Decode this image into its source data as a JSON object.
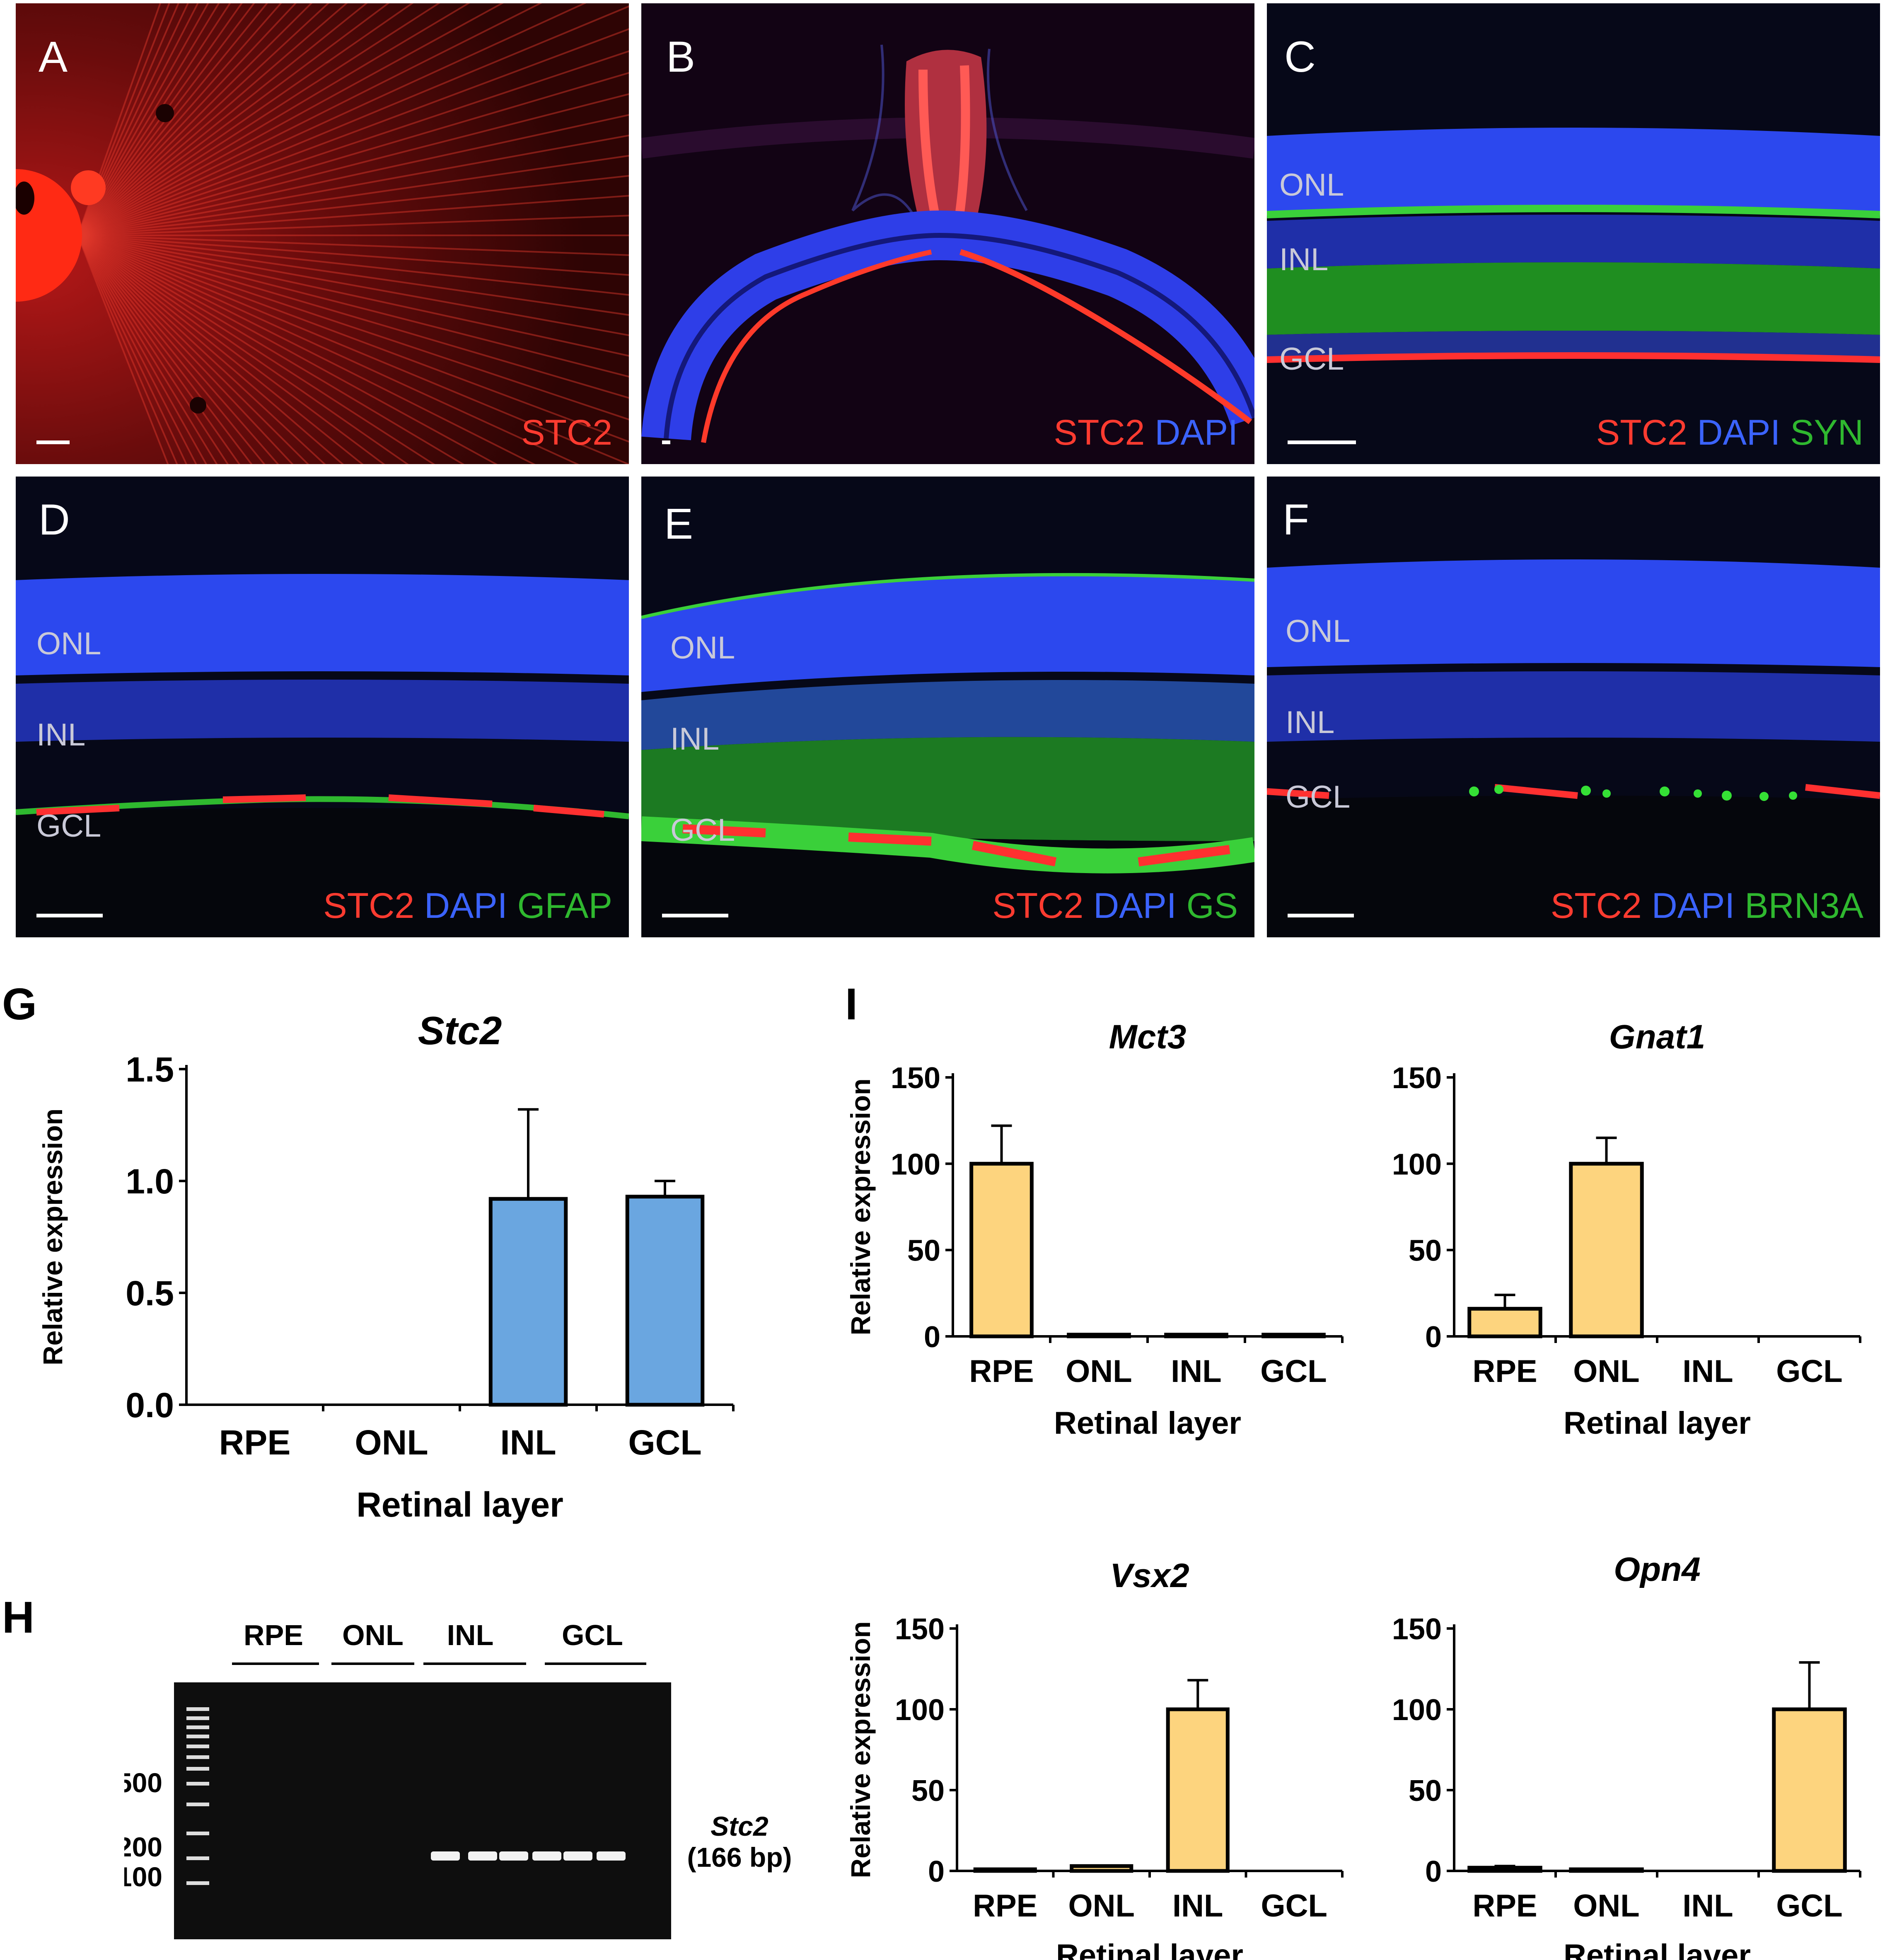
{
  "panels": {
    "A": {
      "letter": "A",
      "stains": [
        {
          "text": "STC2",
          "color": "#ff3b30"
        }
      ],
      "layers": []
    },
    "B": {
      "letter": "B",
      "stains": [
        {
          "text": "STC2",
          "color": "#ff3b30"
        },
        {
          "text": "DAPI",
          "color": "#3b63ff"
        }
      ],
      "layers": []
    },
    "C": {
      "letter": "C",
      "stains": [
        {
          "text": "STC2",
          "color": "#ff3b30"
        },
        {
          "text": "DAPI",
          "color": "#3b63ff"
        },
        {
          "text": "SYN",
          "color": "#2fb82f"
        }
      ],
      "layers": [
        "ONL",
        "INL",
        "GCL"
      ]
    },
    "D": {
      "letter": "D",
      "stains": [
        {
          "text": "STC2",
          "color": "#ff3b30"
        },
        {
          "text": "DAPI",
          "color": "#3b63ff"
        },
        {
          "text": "GFAP",
          "color": "#2fb82f"
        }
      ],
      "layers": [
        "ONL",
        "INL",
        "GCL"
      ]
    },
    "E": {
      "letter": "E",
      "stains": [
        {
          "text": "STC2",
          "color": "#ff3b30"
        },
        {
          "text": "DAPI",
          "color": "#3b63ff"
        },
        {
          "text": "GS",
          "color": "#2fb82f"
        }
      ],
      "layers": [
        "ONL",
        "INL",
        "GCL"
      ]
    },
    "F": {
      "letter": "F",
      "stains": [
        {
          "text": "STC2",
          "color": "#ff3b30"
        },
        {
          "text": "DAPI",
          "color": "#3b63ff"
        },
        {
          "text": "BRN3A",
          "color": "#2fb82f"
        }
      ],
      "layers": [
        "ONL",
        "INL",
        "GCL"
      ]
    }
  },
  "letters": {
    "G": "G",
    "H": "H",
    "I": "I"
  },
  "gel": {
    "lanes": [
      "RPE",
      "ONL",
      "INL",
      "GCL"
    ],
    "ladder_labels": [
      "500",
      "200",
      "100"
    ],
    "band_gene": "Stc2",
    "band_size": "(166 bp)"
  },
  "chart_data": [
    {
      "id": "G",
      "type": "bar",
      "title": "Stc2",
      "categories": [
        "RPE",
        "ONL",
        "INL",
        "GCL"
      ],
      "values": [
        0,
        0,
        0.92,
        0.93
      ],
      "errors": [
        0,
        0,
        0.4,
        0.07
      ],
      "ylim": [
        0,
        1.5
      ],
      "yticks": [
        0.0,
        0.5,
        1.0,
        1.5
      ],
      "ytick_labels": [
        "0.0",
        "0.5",
        "1.0",
        "1.5"
      ],
      "xlabel": "Retinal layer",
      "ylabel": "Relative expression",
      "color": "#6aa6e0"
    },
    {
      "id": "Mct3",
      "type": "bar",
      "title": "Mct3",
      "categories": [
        "RPE",
        "ONL",
        "INL",
        "GCL"
      ],
      "values": [
        100,
        1,
        1,
        1
      ],
      "errors": [
        22,
        0,
        0,
        0
      ],
      "ylim": [
        0,
        150
      ],
      "yticks": [
        0,
        50,
        100,
        150
      ],
      "ytick_labels": [
        "0",
        "50",
        "100",
        "150"
      ],
      "xlabel": "Retinal layer",
      "ylabel": "Relative expression",
      "color": "#fdd47e"
    },
    {
      "id": "Gnat1",
      "type": "bar",
      "title": "Gnat1",
      "categories": [
        "RPE",
        "ONL",
        "INL",
        "GCL"
      ],
      "values": [
        16,
        100,
        0,
        0
      ],
      "errors": [
        8,
        15,
        0,
        0
      ],
      "ylim": [
        0,
        150
      ],
      "yticks": [
        0,
        50,
        100,
        150
      ],
      "ytick_labels": [
        "0",
        "50",
        "100",
        "150"
      ],
      "xlabel": "Retinal layer",
      "ylabel": "",
      "color": "#fdd47e"
    },
    {
      "id": "Vsx2",
      "type": "bar",
      "title": "Vsx2",
      "categories": [
        "RPE",
        "ONL",
        "INL",
        "GCL"
      ],
      "values": [
        1,
        3,
        100,
        0
      ],
      "errors": [
        0,
        0,
        18,
        0
      ],
      "ylim": [
        0,
        150
      ],
      "yticks": [
        0,
        50,
        100,
        150
      ],
      "ytick_labels": [
        "0",
        "50",
        "100",
        "150"
      ],
      "xlabel": "Retinal layer",
      "ylabel": "Relative expression",
      "color": "#fdd47e"
    },
    {
      "id": "Opn4",
      "type": "bar",
      "title": "Opn4",
      "categories": [
        "RPE",
        "ONL",
        "INL",
        "GCL"
      ],
      "values": [
        2,
        1,
        0,
        100
      ],
      "errors": [
        1,
        0,
        0,
        29
      ],
      "ylim": [
        0,
        150
      ],
      "yticks": [
        0,
        50,
        100,
        150
      ],
      "ytick_labels": [
        "0",
        "50",
        "100",
        "150"
      ],
      "xlabel": "Retinal layer",
      "ylabel": "",
      "color": "#fdd47e"
    }
  ]
}
